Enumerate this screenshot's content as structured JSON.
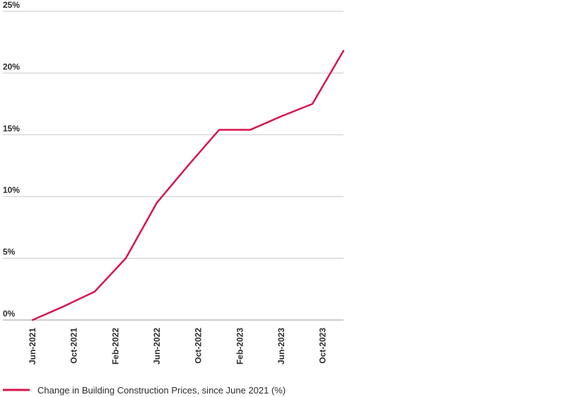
{
  "chart_data": {
    "type": "line",
    "categories": [
      "Jun-2021",
      "Oct-2021",
      "Feb-2022",
      "Jun-2022",
      "Oct-2022",
      "Feb-2023",
      "Jun-2023",
      "Oct-2023"
    ],
    "x": [
      "Jun-2021",
      "Sep-2021",
      "Dec-2021",
      "Mar-2022",
      "Jun-2022",
      "Sep-2022",
      "Dec-2022",
      "Mar-2023",
      "Jun-2023",
      "Sep-2023",
      "Dec-2023"
    ],
    "series": [
      {
        "name": "Change in Building Construction Prices, since June 2021 (%)",
        "values": [
          0.0,
          1.1,
          2.3,
          5.0,
          9.5,
          12.5,
          15.4,
          15.4,
          16.5,
          17.5,
          21.8
        ]
      }
    ],
    "yticks": [
      "0%",
      "5%",
      "10%",
      "15%",
      "20%",
      "25%"
    ],
    "ylim": [
      0,
      25
    ],
    "grid": true,
    "legend": "bottom-left",
    "line_color": "#d7144f",
    "grid_color": "#c8c8c8"
  }
}
